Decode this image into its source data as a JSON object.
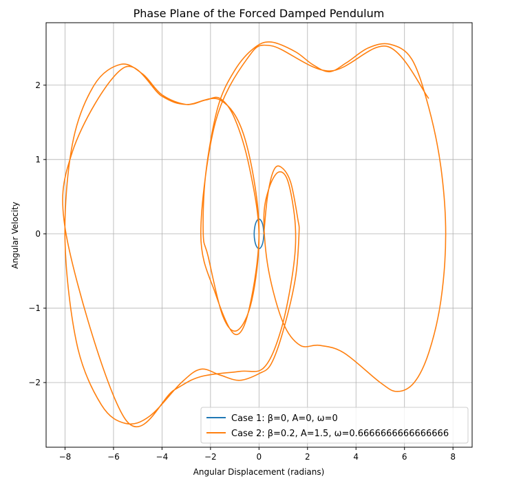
{
  "chart_data": {
    "type": "line",
    "title": "Phase Plane of the Forced Damped Pendulum",
    "x_label": "Angular Displacement (radians)",
    "y_label": "Angular Velocity",
    "xlim": [
      -8.78,
      8.79
    ],
    "ylim": [
      -2.87,
      2.84
    ],
    "xticks": [
      {
        "value": -8,
        "label": "−8"
      },
      {
        "value": -6,
        "label": "−6"
      },
      {
        "value": -4,
        "label": "−4"
      },
      {
        "value": -2,
        "label": "−2"
      },
      0,
      2,
      4,
      6,
      8
    ],
    "yticks": [
      {
        "value": -2,
        "label": "−2"
      },
      {
        "value": -1,
        "label": "−1"
      },
      0,
      1,
      2
    ],
    "grid": true,
    "legend_loc": "lower right",
    "series": [
      {
        "name": "Case 1: β=0, A=0, ω=0",
        "color": "#1f77b4",
        "x": [
          0.2,
          0.17,
          0.1,
          0,
          -0.1,
          -0.17,
          -0.2,
          -0.17,
          -0.1,
          0,
          0.1,
          0.17,
          0.2
        ],
        "values": [
          0,
          -0.1,
          -0.17,
          -0.2,
          -0.17,
          -0.1,
          0,
          0.1,
          0.17,
          0.2,
          0.17,
          0.1,
          0
        ]
      },
      {
        "name": "Case 2: β=0.2, A=1.5, ω=0.6666666666666666",
        "color": "#ff7f0e",
        "x": [
          0.2,
          0.35,
          0.6,
          0.9,
          1.3,
          1.6,
          1.65,
          1.5,
          1.0,
          0.5,
          0,
          -0.8,
          -1.6,
          -2.4,
          -3.2,
          -4.5,
          -5.5,
          -6.5,
          -7.5,
          -8,
          -7.7,
          -6.8,
          -5.7,
          -4.8,
          -4,
          -3,
          -2.2,
          -1.6,
          -1,
          -0.4,
          0,
          -0.3,
          -0.9,
          -1.5,
          -2.1,
          -2.3,
          -2.2,
          -1.7,
          -1.0,
          -0.2,
          0.5,
          1.5,
          2.2,
          2.9,
          3.6,
          4.5,
          5.4,
          6.3,
          7.0,
          7.5,
          7.7,
          7.5,
          7.0,
          6.4,
          5.7,
          5.0,
          3.5,
          2.5,
          1.7,
          1.0,
          0.4,
          0.2,
          0.4,
          0.8,
          1.2,
          1.5,
          1.4,
          0.9,
          0.2,
          -0.8,
          -2.4,
          -3.5,
          -5.5,
          -7.9,
          -7.7,
          -5.6,
          -4,
          -3,
          -1.6,
          -0.6,
          0,
          -0.4,
          -1,
          -1.8,
          -2.4,
          -1.8,
          -0.5,
          0.5,
          2.9,
          5.3,
          7
        ],
        "values": [
          0,
          0.5,
          0.85,
          0.9,
          0.7,
          0.2,
          0,
          -0.6,
          -1.3,
          -1.75,
          -1.88,
          -1.97,
          -1.9,
          -1.82,
          -2.0,
          -2.45,
          -2.55,
          -2.3,
          -1.5,
          -0.1,
          1.2,
          2.0,
          2.28,
          2.15,
          1.87,
          1.74,
          1.8,
          1.82,
          1.55,
          0.9,
          0,
          -0.9,
          -1.3,
          -1.1,
          -0.3,
          0,
          0.8,
          1.7,
          2.2,
          2.5,
          2.58,
          2.45,
          2.28,
          2.18,
          2.3,
          2.5,
          2.55,
          2.35,
          1.7,
          0.9,
          0,
          -0.9,
          -1.6,
          -2.0,
          -2.12,
          -2.0,
          -1.6,
          -1.5,
          -1.5,
          -1.2,
          -0.5,
          0.2,
          0.6,
          0.83,
          0.7,
          0.1,
          -0.5,
          -1.3,
          -1.8,
          -1.85,
          -1.92,
          -2.1,
          -2.5,
          -0.1,
          1.1,
          2.23,
          1.85,
          1.74,
          1.8,
          1.3,
          0.1,
          -1.0,
          -1.35,
          -0.8,
          0,
          1.5,
          2.35,
          2.53,
          2.19,
          2.52,
          1.82
        ]
      }
    ]
  }
}
